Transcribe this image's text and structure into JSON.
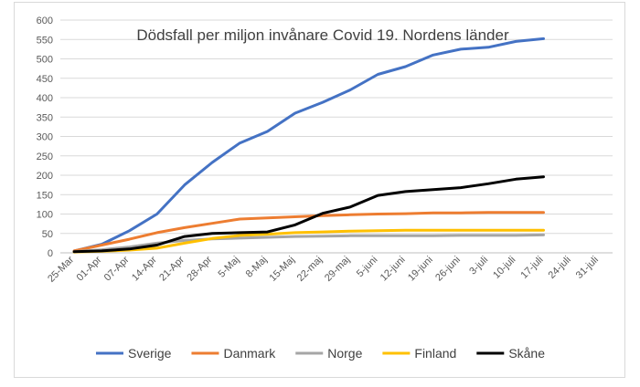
{
  "chart_data": {
    "type": "line",
    "title": "Dödsfall per miljon invånare Covid 19. Nordens länder",
    "xlabel": "",
    "ylabel": "",
    "ylim": [
      0,
      600
    ],
    "yticks": [
      0,
      50,
      100,
      150,
      200,
      250,
      300,
      350,
      400,
      450,
      500,
      550,
      600
    ],
    "categories": [
      "25-Mar",
      "01-Apr",
      "07-Apr",
      "14-Apr",
      "21-Apr",
      "28-Apr",
      "5-Maj",
      "8-Maj",
      "15-Maj",
      "22-maj",
      "29-maj",
      "5-juni",
      "12-juni",
      "19-juni",
      "26-juni",
      "3-juli",
      "10-juli",
      "17-juli",
      "24-juli",
      "31-juli"
    ],
    "grid": "horizontal",
    "legend": "bottom",
    "series": [
      {
        "name": "Sverige",
        "color": "#4472C4",
        "values": [
          5,
          22,
          57,
          100,
          175,
          233,
          283,
          313,
          360,
          388,
          420,
          460,
          480,
          510,
          525,
          530,
          545,
          552,
          null,
          null
        ]
      },
      {
        "name": "Danmark",
        "color": "#ED7D31",
        "values": [
          5,
          20,
          35,
          52,
          65,
          76,
          87,
          90,
          93,
          96,
          98,
          100,
          101,
          103,
          103,
          104,
          104,
          104,
          null,
          null
        ]
      },
      {
        "name": "Norge",
        "color": "#A5A5A5",
        "values": [
          3,
          8,
          15,
          25,
          32,
          36,
          38,
          40,
          42,
          43,
          44,
          44,
          44,
          44,
          45,
          45,
          45,
          46,
          null,
          null
        ]
      },
      {
        "name": "Finland",
        "color": "#FFC000",
        "values": [
          2,
          4,
          7,
          12,
          25,
          37,
          45,
          48,
          52,
          54,
          56,
          57,
          58,
          58,
          58,
          58,
          58,
          58,
          null,
          null
        ]
      },
      {
        "name": "Skåne",
        "color": "#000000",
        "values": [
          3,
          5,
          10,
          20,
          42,
          50,
          52,
          54,
          72,
          102,
          118,
          148,
          158,
          163,
          168,
          178,
          190,
          196,
          null,
          null
        ]
      }
    ]
  }
}
